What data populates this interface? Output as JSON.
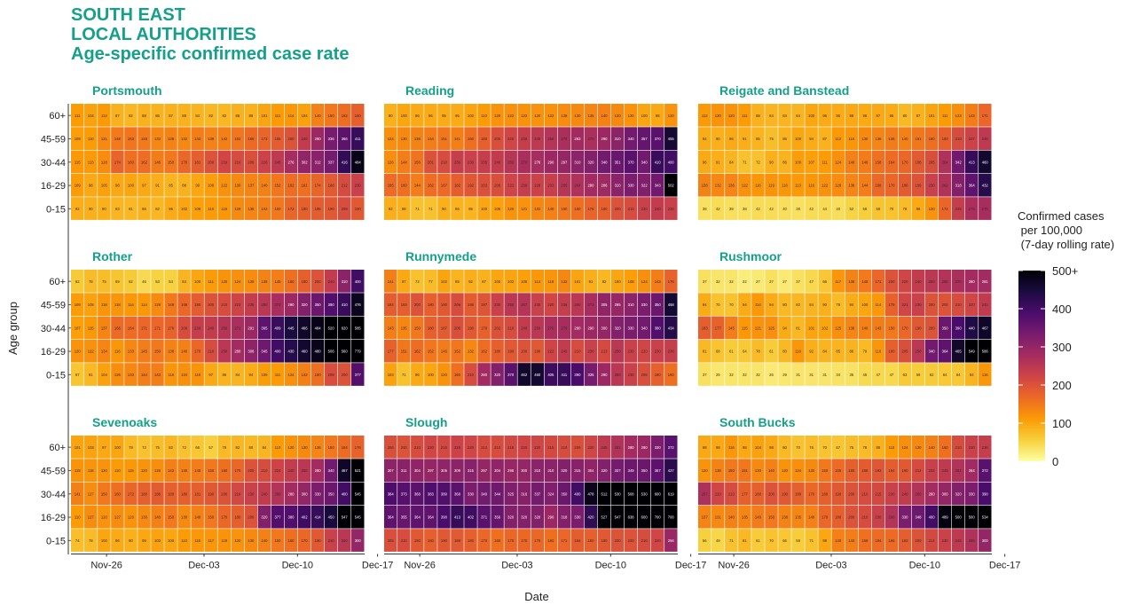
{
  "header": {
    "line1": "SOUTH EAST",
    "line2": "LOCAL AUTHORITIES",
    "line3": "Age-specific confirmed case rate"
  },
  "chart_data": {
    "type": "heatmap",
    "x_axis_label": "Date",
    "y_axis_label": "Age group",
    "date_ticks": [
      "Nov-26",
      "Dec-03",
      "Dec-10",
      "Dec-17"
    ],
    "age_groups": [
      "60+",
      "45-59",
      "30-44",
      "16-29",
      "0-15"
    ],
    "legend": {
      "title_line1": "Confirmed cases",
      "title_line2": "per 100,000",
      "title_line3": "(7-day rolling rate)",
      "ticks": [
        "500+",
        "400",
        "300",
        "200",
        "100",
        "0"
      ],
      "range": [
        0,
        500
      ]
    },
    "colormap": [
      "#fcffa4",
      "#f7d13d",
      "#fb9b06",
      "#ed6925",
      "#cf4446",
      "#a52c60",
      "#781c6d",
      "#4a0c6b",
      "#1b0c41",
      "#000004"
    ],
    "panels": [
      {
        "name": "Portsmouth",
        "rows": [
          [
            111,
            104,
            112,
            87,
            82,
            88,
            86,
            87,
            88,
            84,
            82,
            82,
            88,
            88,
            101,
            111,
            114,
            104,
            140,
            150,
            162,
            180
          ],
          [
            108,
            110,
            131,
            148,
            153,
            148,
            133,
            138,
            132,
            143,
            139,
            142,
            152,
            166,
            173,
            185,
            200,
            240,
            290,
            336,
            366,
            411
          ],
          [
            115,
            113,
            128,
            174,
            160,
            162,
            146,
            150,
            170,
            181,
            200,
            219,
            210,
            206,
            226,
            246,
            276,
            302,
            312,
            337,
            416,
            484
          ],
          [
            109,
            98,
            105,
            98,
            100,
            97,
            91,
            85,
            88,
            99,
            108,
            122,
            130,
            137,
            140,
            152,
            162,
            161,
            174,
            188,
            212,
            230
          ],
          [
            92,
            90,
            90,
            83,
            81,
            86,
            82,
            95,
            102,
            106,
            110,
            116,
            129,
            135,
            142,
            150,
            172,
            180,
            185,
            190,
            208,
            190
          ]
        ]
      },
      {
        "name": "Reading",
        "rows": [
          [
            90,
            100,
            96,
            96,
            95,
            95,
            102,
            110,
            120,
            122,
            122,
            120,
            122,
            128,
            130,
            135,
            140,
            130,
            120,
            100,
            98,
            120
          ],
          [
            124,
            130,
            138,
            144,
            151,
            141,
            160,
            180,
            205,
            220,
            236,
            245,
            258,
            270,
            283,
            270,
            290,
            310,
            340,
            357,
            370,
            455
          ],
          [
            126,
            144,
            156,
            201,
            210,
            236,
            230,
            235,
            240,
            255,
            270,
            276,
            290,
            297,
            310,
            320,
            340,
            351,
            370,
            340,
            410,
            400
          ],
          [
            165,
            160,
            144,
            162,
            167,
            182,
            192,
            203,
            206,
            222,
            236,
            228,
            233,
            255,
            264,
            280,
            286,
            310,
            330,
            322,
            343,
            502
          ],
          [
            92,
            88,
            71,
            71,
            90,
            86,
            85,
            100,
            105,
            120,
            121,
            132,
            140,
            150,
            160,
            175,
            180,
            200,
            210,
            230,
            240,
            230
          ]
        ]
      },
      {
        "name": "Reigate and Banstead",
        "rows": [
          [
            112,
            120,
            120,
            111,
            88,
            84,
            84,
            84,
            100,
            96,
            95,
            98,
            96,
            97,
            95,
            80,
            87,
            101,
            111,
            123,
            143,
            171
          ],
          [
            94,
            90,
            96,
            91,
            85,
            75,
            86,
            100,
            94,
            87,
            112,
            116,
            130,
            136,
            146,
            140,
            151,
            160,
            180,
            210,
            227,
            246
          ],
          [
            96,
            91,
            84,
            71,
            72,
            90,
            86,
            109,
            107,
            111,
            124,
            140,
            146,
            158,
            164,
            170,
            188,
            205,
            264,
            342,
            413,
            460
          ],
          [
            138,
            132,
            136,
            122,
            116,
            119,
            116,
            113,
            116,
            122,
            128,
            136,
            144,
            168,
            170,
            186,
            199,
            230,
            262,
            318,
            364,
            432
          ],
          [
            38,
            42,
            39,
            38,
            42,
            42,
            40,
            38,
            42,
            44,
            40,
            52,
            58,
            68,
            70,
            78,
            96,
            120,
            172,
            235,
            270,
            275
          ]
        ]
      },
      {
        "name": "Rother",
        "rows": [
          [
            62,
            78,
            75,
            69,
            62,
            46,
            53,
            54,
            84,
            100,
            111,
            120,
            124,
            128,
            138,
            145,
            160,
            180,
            200,
            240,
            310,
            400
          ],
          [
            109,
            105,
            118,
            118,
            114,
            114,
            129,
            149,
            169,
            185,
            200,
            210,
            223,
            238,
            250,
            272,
            290,
            320,
            350,
            380,
            410,
            476
          ],
          [
            107,
            115,
            137,
            166,
            164,
            171,
            171,
            176,
            209,
            236,
            240,
            256,
            271,
            291,
            365,
            409,
            445,
            466,
            484,
            520,
            620,
            585
          ],
          [
            120,
            122,
            134,
            116,
            133,
            145,
            150,
            138,
            140,
            170,
            210,
            250,
            280,
            306,
            345,
            400,
            430,
            460,
            480,
            506,
            560,
            779
          ],
          [
            67,
            81,
            104,
            126,
            133,
            144,
            143,
            118,
            124,
            119,
            97,
            86,
            84,
            94,
            109,
            111,
            124,
            142,
            160,
            208,
            200,
            377
          ]
        ]
      },
      {
        "name": "Runnymede",
        "rows": [
          [
            141,
            97,
            72,
            77,
            102,
            85,
            92,
            87,
            100,
            102,
            106,
            114,
            118,
            132,
            101,
            91,
            82,
            100,
            108,
            124,
            143,
            176
          ],
          [
            184,
            183,
            200,
            180,
            190,
            209,
            186,
            197,
            230,
            250,
            257,
            230,
            220,
            235,
            250,
            273,
            305,
            295,
            310,
            330,
            350,
            458
          ],
          [
            143,
            135,
            150,
            180,
            187,
            205,
            190,
            178,
            202,
            210,
            240,
            250,
            270,
            275,
            280,
            290,
            300,
            320,
            330,
            340,
            380,
            434
          ],
          [
            177,
            151,
            162,
            152,
            146,
            152,
            132,
            162,
            180,
            190,
            200,
            190,
            222,
            240,
            210,
            230,
            213,
            250,
            230,
            220,
            230,
            236
          ],
          [
            103,
            71,
            96,
            100,
            120,
            160,
            210,
            280,
            320,
            370,
            462,
            460,
            405,
            411,
            390,
            335,
            290,
            250,
            230,
            205,
            180,
            160
          ]
        ]
      },
      {
        "name": "Rushmoor",
        "rows": [
          [
            37,
            32,
            32,
            22,
            27,
            37,
            27,
            37,
            47,
            66,
            117,
            138,
            148,
            171,
            200,
            220,
            240,
            250,
            260,
            270,
            280,
            281
          ],
          [
            94,
            70,
            70,
            94,
            114,
            94,
            80,
            82,
            84,
            90,
            78,
            94,
            100,
            114,
            179,
            221,
            230,
            200,
            200,
            210,
            220,
            242
          ],
          [
            183,
            177,
            145,
            115,
            121,
            125,
            94,
            81,
            101,
            102,
            125,
            136,
            140,
            143,
            150,
            170,
            190,
            200,
            350,
            390,
            440,
            467
          ],
          [
            81,
            68,
            61,
            64,
            78,
            61,
            80,
            116,
            92,
            84,
            85,
            86,
            79,
            116,
            180,
            205,
            250,
            340,
            364,
            465,
            549,
            586
          ],
          [
            37,
            29,
            32,
            32,
            32,
            26,
            29,
            31,
            31,
            31,
            34,
            36,
            45,
            47,
            47,
            63,
            59,
            62,
            64,
            64,
            84,
            116
          ]
        ]
      },
      {
        "name": "Sevenoaks",
        "rows": [
          [
            101,
            103,
            97,
            100,
            79,
            72,
            75,
            82,
            72,
            66,
            57,
            79,
            82,
            80,
            84,
            110,
            120,
            130,
            136,
            150,
            164,
            176
          ],
          [
            119,
            118,
            120,
            110,
            115,
            120,
            126,
            142,
            140,
            145,
            150,
            160,
            170,
            200,
            210,
            224,
            240,
            250,
            280,
            340,
            467,
            521
          ],
          [
            141,
            127,
            150,
            160,
            172,
            180,
            186,
            180,
            180,
            181,
            190,
            200,
            216,
            230,
            240,
            260,
            280,
            300,
            330,
            350,
            400,
            545
          ],
          [
            110,
            127,
            120,
            127,
            120,
            130,
            140,
            150,
            130,
            140,
            150,
            170,
            180,
            200,
            320,
            377,
            380,
            402,
            414,
            450,
            547,
            545
          ],
          [
            74,
            78,
            100,
            96,
            90,
            99,
            103,
            100,
            110,
            115,
            117,
            119,
            120,
            130,
            140,
            150,
            160,
            170,
            190,
            230,
            250,
            300
          ]
        ]
      },
      {
        "name": "Slough",
        "rows": [
          [
            206,
            200,
            210,
            220,
            216,
            226,
            220,
            212,
            210,
            216,
            220,
            220,
            215,
            210,
            206,
            220,
            245,
            262,
            280,
            290,
            330,
            372
          ],
          [
            307,
            311,
            304,
            297,
            305,
            309,
            315,
            297,
            304,
            296,
            300,
            310,
            310,
            320,
            315,
            304,
            320,
            337,
            349,
            350,
            367,
            427
          ],
          [
            384,
            373,
            368,
            383,
            380,
            368,
            330,
            340,
            344,
            325,
            316,
            337,
            324,
            350,
            400,
            478,
            512,
            530,
            508,
            530,
            600,
            619
          ],
          [
            364,
            355,
            364,
            364,
            390,
            413,
            402,
            371,
            356,
            320,
            320,
            320,
            290,
            318,
            330,
            420,
            527,
            547,
            638,
            600,
            700,
            700
          ],
          [
            205,
            210,
            190,
            180,
            190,
            188,
            180,
            170,
            160,
            170,
            170,
            170,
            160,
            171,
            184,
            180,
            190,
            200,
            200,
            210,
            220,
            294
          ]
        ]
      },
      {
        "name": "South Bucks",
        "rows": [
          [
            98,
            98,
            116,
            98,
            104,
            98,
            80,
            70,
            76,
            70,
            67,
            75,
            78,
            88,
            110,
            124,
            130,
            140,
            160,
            210,
            230,
            236
          ],
          [
            120,
            138,
            150,
            151,
            130,
            140,
            120,
            124,
            130,
            150,
            165,
            180,
            186,
            193,
            184,
            190,
            212,
            232,
            245,
            261,
            284,
            372
          ],
          [
            267,
            220,
            210,
            177,
            180,
            200,
            190,
            180,
            170,
            180,
            190,
            200,
            210,
            215,
            230,
            240,
            260,
            280,
            300,
            320,
            330,
            390
          ],
          [
            137,
            131,
            140,
            135,
            146,
            150,
            138,
            135,
            140,
            170,
            180,
            200,
            210,
            230,
            260,
            330,
            348,
            400,
            489,
            500,
            500,
            534
          ],
          [
            56,
            49,
            71,
            81,
            61,
            70,
            66,
            59,
            71,
            99,
            140,
            143,
            159,
            164,
            166,
            183,
            200,
            214,
            230,
            246,
            265,
            300
          ]
        ]
      }
    ]
  }
}
